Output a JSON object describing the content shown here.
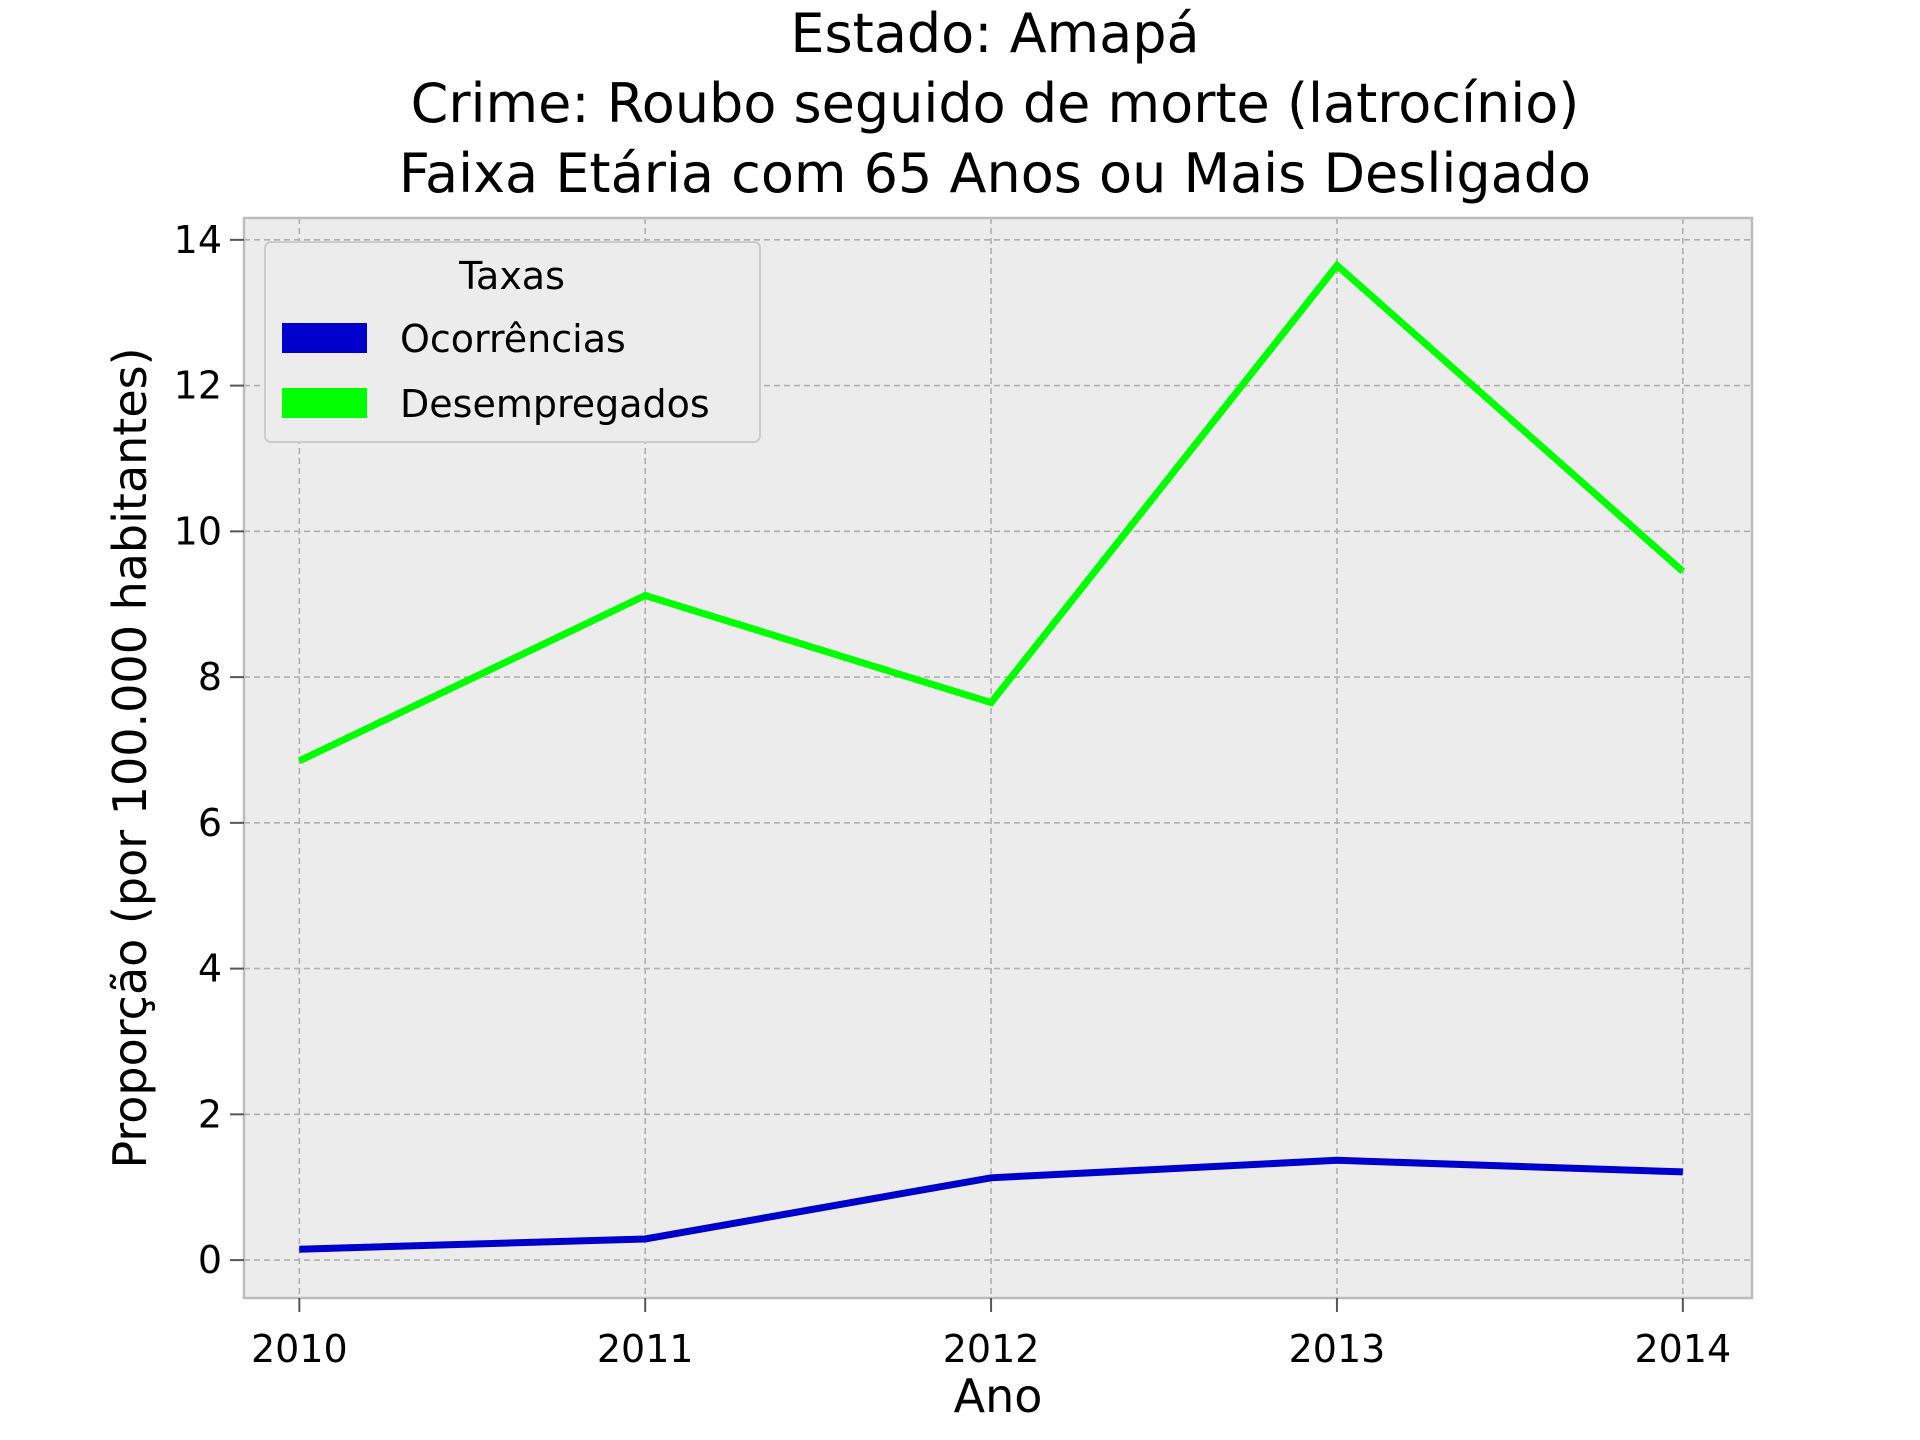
{
  "chart_data": {
    "type": "line",
    "title_lines": [
      "Estado: Amapá",
      "Crime: Roubo seguido de morte (latrocínio)",
      "Faixa Etária com 65 Anos ou Mais   Desligado"
    ],
    "xlabel": "Ano",
    "ylabel": "Proporção (por 100.000 habitantes)",
    "x": [
      2010,
      2011,
      2012,
      2013,
      2014
    ],
    "x_tick_labels": [
      "2010",
      "2011",
      "2012",
      "2013",
      "2014"
    ],
    "y_ticks": [
      0,
      2,
      4,
      6,
      8,
      10,
      12,
      14
    ],
    "y_tick_labels": [
      "0",
      "2",
      "4",
      "6",
      "8",
      "10",
      "12",
      "14"
    ],
    "ylim": [
      -0.52,
      14.3
    ],
    "xlim": [
      2009.84,
      2014.2
    ],
    "grid": true,
    "legend": {
      "title": "Taxas",
      "placement": "top-left"
    },
    "series": [
      {
        "name": "Ocorrências",
        "color": "#0000cc",
        "values": [
          0.15,
          0.29,
          1.13,
          1.37,
          1.21
        ]
      },
      {
        "name": "Desempregados",
        "color": "#00ff00",
        "values": [
          6.85,
          9.12,
          7.65,
          13.65,
          9.45
        ]
      }
    ],
    "colors": {
      "plot_background": "#ececec",
      "grid": "#b0b0b0",
      "frame": "#bcbcbc"
    }
  }
}
